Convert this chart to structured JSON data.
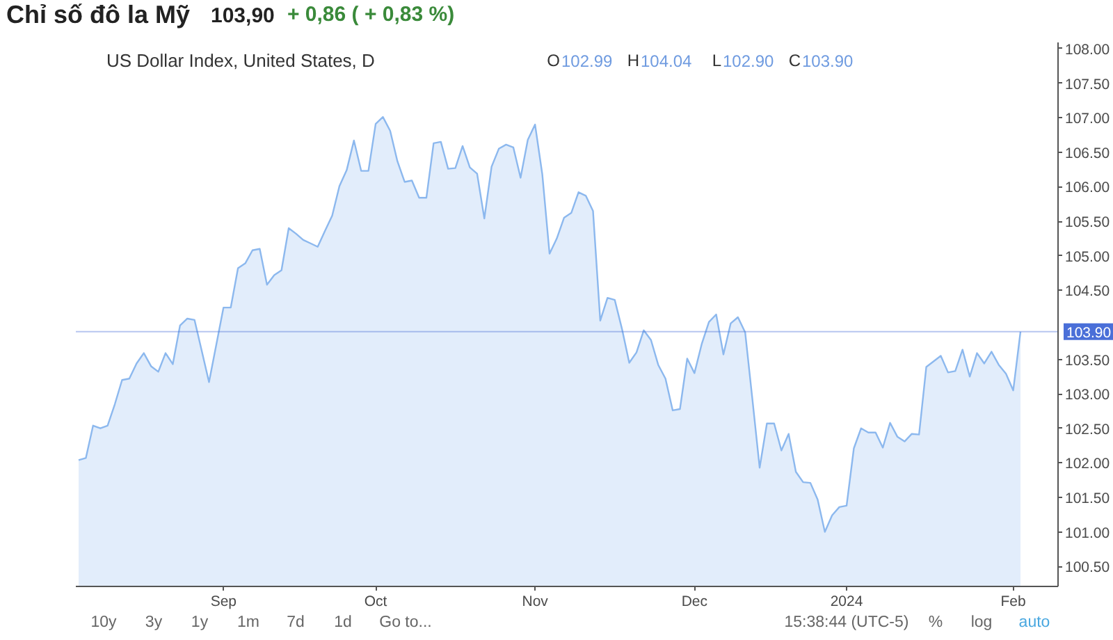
{
  "chart_data": {
    "type": "area",
    "title": "Chỉ số đô la Mỹ",
    "subtitle": "103,90",
    "annotations": [
      "+ 0,86  ( + 0,83 %)",
      "US Dollar Index, United States, D",
      "O102.99",
      "H104.04",
      "L102.90",
      "C103.90",
      "10y",
      "3y",
      "1y",
      "1m",
      "7d",
      "1d",
      "Go to...",
      "15:38:44 (UTC-5)",
      "%",
      "log",
      "auto"
    ],
    "categories": [
      null,
      null,
      null,
      null,
      null,
      null,
      null,
      null,
      null,
      null,
      null,
      null,
      null,
      null,
      null,
      null,
      null,
      null,
      null,
      null,
      "Sep",
      null,
      null,
      null,
      null,
      null,
      null,
      null,
      null,
      null,
      null,
      null,
      null,
      null,
      null,
      null,
      null,
      null,
      null,
      null,
      null,
      "Oct",
      null,
      null,
      null,
      null,
      null,
      null,
      null,
      null,
      null,
      null,
      null,
      null,
      null,
      null,
      null,
      null,
      null,
      null,
      null,
      null,
      null,
      "Nov",
      null,
      null,
      null,
      null,
      null,
      null,
      null,
      null,
      null,
      null,
      null,
      null,
      null,
      null,
      null,
      null,
      null,
      null,
      null,
      null,
      null,
      "Dec",
      null,
      null,
      null,
      null,
      null,
      null,
      null,
      null,
      null,
      null,
      null,
      null,
      null,
      null,
      null,
      null,
      null,
      null,
      null,
      null,
      "2024",
      null,
      null,
      null,
      null,
      null,
      null,
      null,
      null,
      null,
      null,
      null,
      null,
      null,
      null,
      null,
      null,
      null,
      null,
      null,
      null,
      null,
      null,
      "Feb",
      null
    ],
    "series": [
      {
        "color": "#8cb8ee",
        "values": [
          102.04,
          102.07,
          102.54,
          102.5,
          102.54,
          102.85,
          103.2,
          103.22,
          103.44,
          103.59,
          103.4,
          103.32,
          103.59,
          103.43,
          103.99,
          104.09,
          104.07,
          103.62,
          103.17,
          103.71,
          104.25,
          104.25,
          104.82,
          104.89,
          105.08,
          105.1,
          104.58,
          104.72,
          104.79,
          105.4,
          105.32,
          105.23,
          105.18,
          105.13,
          105.36,
          105.58,
          106.01,
          106.24,
          106.67,
          106.23,
          106.23,
          106.91,
          107.01,
          106.81,
          106.37,
          106.07,
          106.09,
          105.84,
          105.84,
          106.63,
          106.65,
          106.26,
          106.27,
          106.59,
          106.28,
          106.19,
          105.54,
          106.29,
          106.55,
          106.61,
          106.57,
          106.13,
          106.68,
          106.9,
          106.18,
          105.03,
          105.25,
          105.55,
          105.62,
          105.92,
          105.87,
          105.65,
          104.06,
          104.39,
          104.36,
          103.94,
          103.45,
          103.6,
          103.92,
          103.78,
          103.42,
          103.22,
          102.76,
          102.78,
          103.51,
          103.3,
          103.72,
          104.04,
          104.15,
          103.57,
          104.02,
          104.11,
          103.89,
          102.92,
          101.93,
          102.57,
          102.57,
          102.18,
          102.42,
          101.87,
          101.72,
          101.71,
          101.47,
          101.0,
          101.24,
          101.36,
          101.38,
          102.21,
          102.5,
          102.44,
          102.44,
          102.22,
          102.58,
          102.38,
          102.31,
          102.42,
          102.41,
          103.39,
          103.47,
          103.55,
          103.31,
          103.33,
          103.64,
          103.25,
          103.59,
          103.44,
          103.61,
          103.42,
          103.29,
          103.05,
          103.9
        ]
      }
    ],
    "ylim": [
      100.21,
      108.09
    ],
    "yticks": [
      {
        "value": 100.5,
        "label": "100.50"
      },
      {
        "value": 101,
        "label": "101.00"
      },
      {
        "value": 101.5,
        "label": "101.50"
      },
      {
        "value": 102,
        "label": "102.00"
      },
      {
        "value": 102.5,
        "label": "102.50"
      },
      {
        "value": 103,
        "label": "103.00"
      },
      {
        "value": 103.5,
        "label": "103.50"
      },
      {
        "value": 104.5,
        "label": "104.50"
      },
      {
        "value": 105,
        "label": "105.00"
      },
      {
        "value": 105.5,
        "label": "105.50"
      },
      {
        "value": 106,
        "label": "106.00"
      },
      {
        "value": 106.5,
        "label": "106.50"
      },
      {
        "value": 107,
        "label": "107.00"
      },
      {
        "value": 107.5,
        "label": "107.50"
      },
      {
        "value": 108,
        "label": "108.00"
      }
    ],
    "ref_lines": [
      {
        "axis": "y",
        "value": 103.9,
        "label": "103.90",
        "color": "#4a6fd8"
      }
    ]
  }
}
